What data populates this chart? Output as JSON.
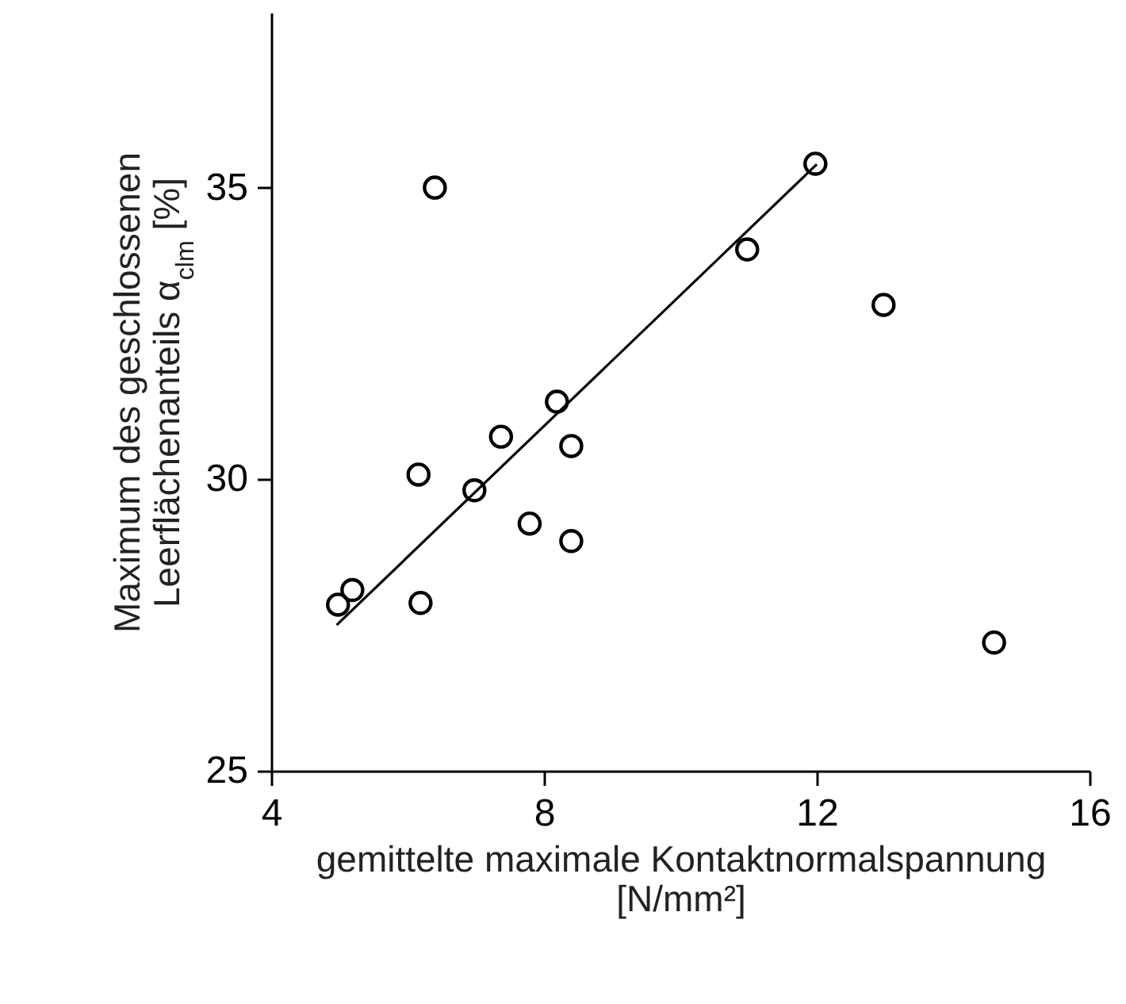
{
  "chart_data": {
    "type": "scatter",
    "xlabel": "gemittelte maximale Kontaktnormalspannung\n[N/mm²]",
    "ylabel": "Maximum des geschlossenen\nLeerflächenanteils α$_{clm}$ [%]",
    "xlim": [
      4,
      16
    ],
    "xticks": [
      4,
      8,
      12,
      16
    ],
    "ylim": [
      25,
      38
    ],
    "yticks": [
      25,
      30,
      35
    ],
    "marker": "circle",
    "series": [
      {
        "color": "#000000",
        "x": [
          4.98,
          5.19,
          6.19,
          6.16,
          6.4,
          6.98,
          7.37,
          7.79,
          8.19,
          8.4,
          8.4,
          10.98,
          11.98,
          12.98,
          14.6
        ],
        "values": [
          27.85,
          28.1,
          27.88,
          30.08,
          35.0,
          29.81,
          30.73,
          29.24,
          31.33,
          30.57,
          28.94,
          33.94,
          35.41,
          32.99,
          27.2
        ]
      },
      {
        "type": "line",
        "color": "#000000",
        "marker": "none",
        "line_style": "solid",
        "x": [
          4.96,
          12.0
        ],
        "values": [
          27.5,
          35.4
        ]
      }
    ]
  }
}
